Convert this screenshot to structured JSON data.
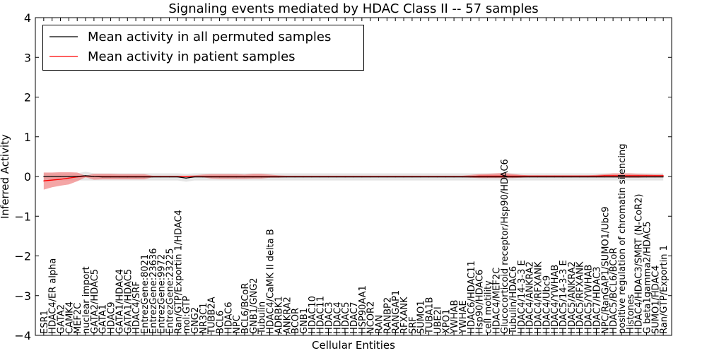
{
  "chart_data": {
    "type": "line",
    "title": "Signaling events mediated by HDAC Class II -- 57 samples",
    "xlabel": "Cellular Entities",
    "ylabel": "Inferred Activity",
    "ylim": [
      -4,
      4
    ],
    "yticks": [
      -4,
      -3,
      -2,
      -1,
      0,
      1,
      2,
      3,
      4
    ],
    "ytick_labels": [
      "−4",
      "−3",
      "−2",
      "−1",
      "0",
      "1",
      "2",
      "3",
      "4"
    ],
    "legend_position": "top-left",
    "categories": [
      "ESR1",
      "HDAC4/ER alpha",
      "GATA2",
      "CAMK4",
      "MEF2C",
      "nuclear import",
      "GATA2/HDAC5",
      "GATA1",
      "HDAC9",
      "GATA1/HDAC4",
      "GATA1/HDAC5",
      "HDAC4/SRF",
      "EntrezGene:8021",
      "EntrezGene:23636",
      "EntrezGene:9972",
      "EntrezGene:23225",
      "Ran/GTP/Exportin 1/HDAC4",
      "mol:GTP",
      "GNG2",
      "NR3C1",
      "TUBB2A",
      "BCL6",
      "HDAC6",
      "NPC",
      "BCL6/BCoR",
      "GNB1/GNG2",
      "Tubulin",
      "HDAC4/CaMK II delta B",
      "ADRBK1",
      "ANKRA2",
      "BCOR",
      "GNB1",
      "HDAC10",
      "HDAC11",
      "HDAC3",
      "HDAC4",
      "HDAC5",
      "HDAC7",
      "HSP90AA1",
      "NCOR2",
      "RAN",
      "RANBP2",
      "RANGAP1",
      "RFXANK",
      "SRF",
      "SUMO1",
      "TUBA1B",
      "UBE2I",
      "XPO1",
      "YWHAB",
      "YWHAE",
      "HDAC6/HDAC11",
      "Hsp90/HDAC6",
      "cell motility",
      "HDAC4/MEF2C",
      "Glucocorticoid receptor/Hsp90/HDAC6",
      "Tubulin/HDAC6",
      "HDAC4/14-3-3 E",
      "HDAC4/ANKRA2",
      "HDAC4/RFXANK",
      "HDAC4/Ubc9",
      "HDAC4/YWHAB",
      "HDAC5/14-3-3 E",
      "HDAC5/ANKRA2",
      "HDAC5/RFXANK",
      "HDAC5/YWHAB",
      "HDAC7/HDAC3",
      "NPC/RanGAP1/SUMO1/Ubc9",
      "HDAC5/BCL6/BCoR",
      "positive regulation of chromatin silencing",
      "Histones",
      "HDAC4/HDAC3/SMRT (N-CoR2)",
      "G beta1gamma2/HDAC5",
      "SUMO1/HDAC4",
      "Ran/GTP/Exportin 1"
    ],
    "series": [
      {
        "name": "Mean activity in all permuted samples",
        "color": "#000000",
        "values": [
          0,
          0,
          0,
          0,
          0,
          0.02,
          0,
          -0.01,
          -0.01,
          -0.01,
          -0.01,
          -0.01,
          -0.01,
          -0.01,
          -0.01,
          -0.01,
          -0.01,
          -0.04,
          -0.01,
          -0.01,
          -0.01,
          -0.01,
          -0.01,
          -0.01,
          -0.01,
          -0.01,
          -0.01,
          -0.01,
          -0.01,
          -0.01,
          -0.01,
          -0.01,
          -0.01,
          -0.01,
          -0.01,
          -0.01,
          -0.01,
          -0.01,
          -0.01,
          -0.01,
          -0.01,
          -0.01,
          -0.01,
          -0.01,
          -0.01,
          -0.01,
          -0.01,
          -0.01,
          -0.01,
          -0.01,
          -0.01,
          -0.01,
          -0.01,
          -0.01,
          -0.01,
          -0.01,
          -0.01,
          -0.01,
          -0.01,
          -0.01,
          -0.01,
          -0.01,
          -0.01,
          -0.01,
          -0.01,
          -0.01,
          -0.01,
          -0.01,
          -0.01,
          -0.01,
          -0.01,
          -0.01,
          -0.01,
          -0.01,
          -0.01
        ],
        "band_lower": [
          -0.1,
          -0.1,
          -0.1,
          -0.1,
          -0.1,
          -0.1,
          -0.1,
          -0.1,
          -0.1,
          -0.1,
          -0.1,
          -0.1,
          -0.1,
          -0.1,
          -0.1,
          -0.1,
          -0.1,
          -0.13,
          -0.1,
          -0.1,
          -0.1,
          -0.1,
          -0.1,
          -0.1,
          -0.1,
          -0.1,
          -0.1,
          -0.1,
          -0.1,
          -0.1,
          -0.1,
          -0.1,
          -0.1,
          -0.1,
          -0.1,
          -0.1,
          -0.1,
          -0.1,
          -0.1,
          -0.1,
          -0.1,
          -0.1,
          -0.1,
          -0.1,
          -0.1,
          -0.1,
          -0.1,
          -0.1,
          -0.1,
          -0.1,
          -0.1,
          -0.1,
          -0.1,
          -0.1,
          -0.1,
          -0.1,
          -0.1,
          -0.1,
          -0.1,
          -0.1,
          -0.1,
          -0.1,
          -0.1,
          -0.1,
          -0.1,
          -0.1,
          -0.1,
          -0.1,
          -0.1,
          -0.1,
          -0.1,
          -0.1,
          -0.1,
          -0.1,
          -0.1
        ],
        "band_upper": [
          0.08,
          0.08,
          0.08,
          0.08,
          0.08,
          0.12,
          0.08,
          0.08,
          0.08,
          0.08,
          0.08,
          0.08,
          0.08,
          0.08,
          0.08,
          0.08,
          0.08,
          0.07,
          0.08,
          0.08,
          0.08,
          0.08,
          0.08,
          0.08,
          0.08,
          0.08,
          0.08,
          0.08,
          0.08,
          0.08,
          0.08,
          0.08,
          0.08,
          0.08,
          0.08,
          0.08,
          0.08,
          0.08,
          0.08,
          0.08,
          0.08,
          0.08,
          0.08,
          0.08,
          0.08,
          0.08,
          0.08,
          0.08,
          0.08,
          0.08,
          0.08,
          0.08,
          0.08,
          0.08,
          0.08,
          0.08,
          0.08,
          0.08,
          0.08,
          0.08,
          0.08,
          0.08,
          0.08,
          0.08,
          0.08,
          0.08,
          0.08,
          0.08,
          0.08,
          0.08,
          0.08,
          0.08,
          0.08,
          0.08,
          0.08
        ]
      },
      {
        "name": "Mean activity in patient samples",
        "color": "#ff0000",
        "values": [
          -0.11,
          -0.09,
          -0.07,
          -0.04,
          -0.01,
          0.01,
          0,
          0,
          0,
          0,
          0,
          0,
          0,
          0,
          0,
          0,
          0,
          0,
          0,
          0,
          0,
          0,
          0,
          0,
          0,
          0,
          0,
          0,
          0,
          0,
          0,
          0,
          0,
          0,
          0,
          0,
          0,
          0,
          0,
          0,
          0,
          0,
          0,
          0,
          0,
          0,
          0,
          0,
          0,
          0,
          0,
          0,
          0.01,
          0.01,
          0.01,
          0.01,
          0.01,
          0.01,
          0.01,
          0.01,
          0.01,
          0.01,
          0.01,
          0.01,
          0.01,
          0.01,
          0.01,
          0.02,
          0.02,
          0.02,
          0.02,
          0.02,
          0.02,
          0.02,
          0.02
        ],
        "band_lower": [
          -0.33,
          -0.27,
          -0.23,
          -0.2,
          -0.12,
          -0.02,
          -0.08,
          -0.07,
          -0.07,
          -0.07,
          -0.07,
          -0.07,
          -0.07,
          -0.02,
          -0.02,
          -0.02,
          -0.02,
          -0.02,
          -0.02,
          -0.02,
          -0.05,
          -0.06,
          -0.06,
          -0.06,
          -0.06,
          -0.05,
          -0.05,
          -0.03,
          -0.03,
          -0.02,
          -0.02,
          -0.02,
          -0.02,
          -0.02,
          -0.02,
          -0.02,
          -0.02,
          -0.02,
          -0.02,
          -0.02,
          -0.02,
          -0.02,
          -0.02,
          -0.02,
          -0.02,
          -0.02,
          -0.02,
          -0.02,
          -0.02,
          -0.02,
          -0.02,
          -0.03,
          -0.04,
          -0.04,
          -0.04,
          -0.04,
          -0.04,
          -0.03,
          -0.02,
          -0.02,
          -0.02,
          -0.02,
          -0.02,
          -0.02,
          -0.02,
          -0.02,
          -0.02,
          -0.02,
          -0.02,
          -0.03,
          -0.03,
          -0.03,
          -0.02,
          -0.02,
          -0.02
        ],
        "band_upper": [
          0.1,
          0.1,
          0.11,
          0.11,
          0.1,
          0.02,
          0.07,
          0.07,
          0.07,
          0.06,
          0.06,
          0.06,
          0.06,
          0.02,
          0.02,
          0.02,
          0.02,
          0.02,
          0.03,
          0.05,
          0.06,
          0.06,
          0.06,
          0.06,
          0.05,
          0.07,
          0.07,
          0.05,
          0.03,
          0.02,
          0.02,
          0.02,
          0.02,
          0.02,
          0.02,
          0.02,
          0.02,
          0.02,
          0.02,
          0.02,
          0.02,
          0.02,
          0.02,
          0.02,
          0.02,
          0.02,
          0.02,
          0.02,
          0.02,
          0.02,
          0.02,
          0.04,
          0.06,
          0.07,
          0.08,
          0.09,
          0.07,
          0.04,
          0.03,
          0.03,
          0.03,
          0.03,
          0.03,
          0.03,
          0.03,
          0.03,
          0.04,
          0.06,
          0.08,
          0.08,
          0.08,
          0.07,
          0.06,
          0.05,
          0.05
        ]
      }
    ]
  }
}
